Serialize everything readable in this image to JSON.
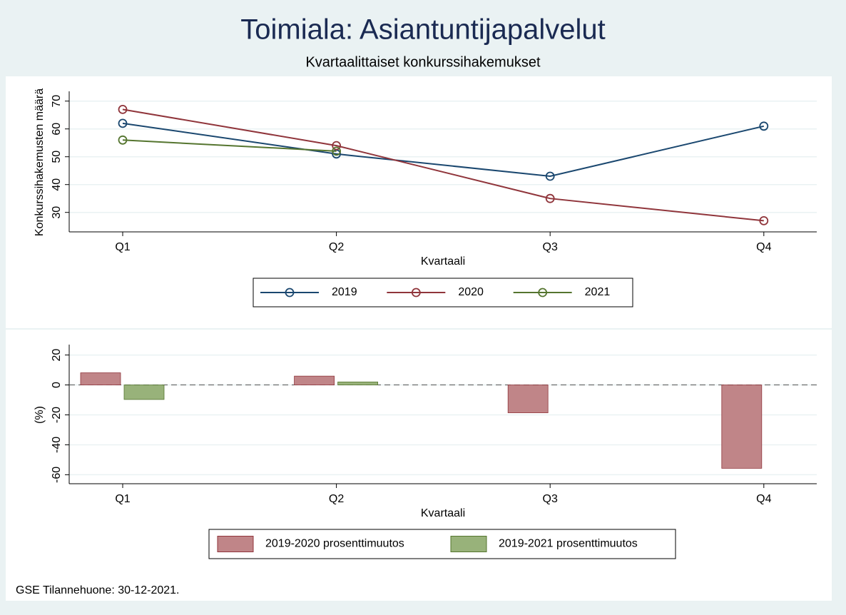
{
  "title": "Toimiala: Asiantuntijapalvelut",
  "subtitle": "Kvartaalittaiset konkurssihakemukset",
  "note": "GSE Tilannehuone: 30-12-2021.",
  "chart_data": [
    {
      "type": "line",
      "x_label": "Kvartaali",
      "y_label": "Konkurssihakemusten määrä",
      "categories": [
        "Q1",
        "Q2",
        "Q3",
        "Q4"
      ],
      "series": [
        {
          "name": "2019",
          "color": "#1a476f",
          "values": [
            62,
            51,
            43,
            61
          ]
        },
        {
          "name": "2020",
          "color": "#90353b",
          "values": [
            67,
            54,
            35,
            27
          ]
        },
        {
          "name": "2021",
          "color": "#55752f",
          "values": [
            56,
            52,
            null,
            null
          ]
        }
      ],
      "ylim": [
        23,
        73
      ],
      "yticks": [
        30,
        40,
        50,
        60,
        70
      ],
      "grid": true,
      "legend": "bottom"
    },
    {
      "type": "bar",
      "x_label": "Kvartaali",
      "y_label": "(%)",
      "categories": [
        "Q1",
        "Q2",
        "Q3",
        "Q4"
      ],
      "series": [
        {
          "name": "2019-2020 prosenttimuutos",
          "color": "#c08588",
          "values": [
            8.1,
            5.9,
            -18.6,
            -55.7
          ]
        },
        {
          "name": "2019-2021 prosenttimuutos",
          "color": "#98b27a",
          "values": [
            -9.7,
            2.0,
            null,
            null
          ]
        }
      ],
      "ylim": [
        -66,
        26
      ],
      "yticks": [
        -60,
        -40,
        -20,
        0,
        20
      ],
      "grid": true,
      "legend": "bottom"
    }
  ]
}
